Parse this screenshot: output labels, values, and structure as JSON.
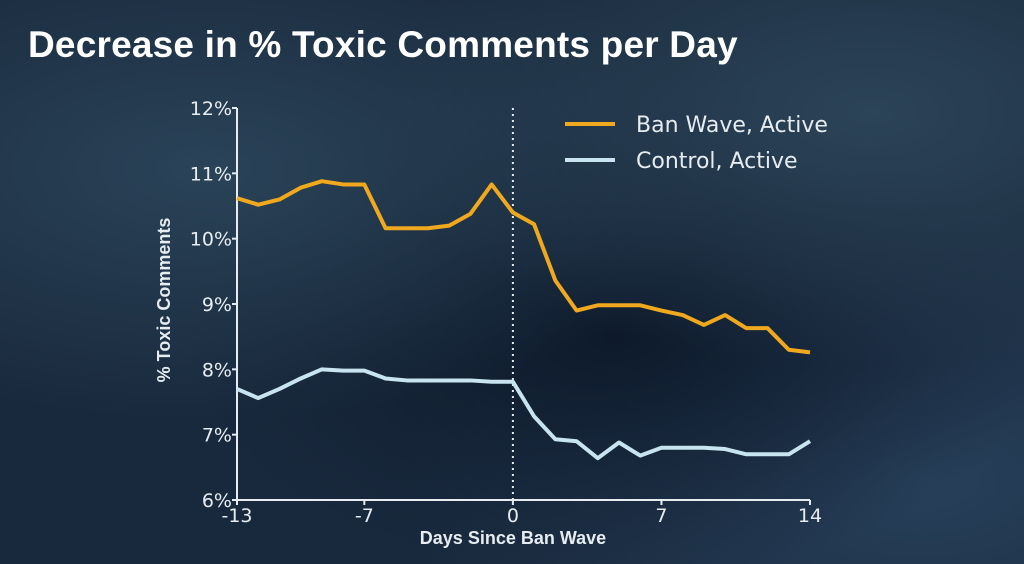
{
  "chart_data": {
    "type": "line",
    "title": "Decrease in % Toxic Comments per Day",
    "xlabel": "Days Since Ban Wave",
    "ylabel": "% Toxic Comments",
    "xlim": [
      -13,
      14
    ],
    "ylim": [
      6,
      12
    ],
    "x_ticks": [
      -13,
      -7,
      0,
      7,
      14
    ],
    "x_tick_labels": [
      "-13",
      "-7",
      "0",
      "7",
      "14"
    ],
    "y_ticks": [
      6,
      7,
      8,
      9,
      10,
      11,
      12
    ],
    "y_tick_labels": [
      "6%",
      "7%",
      "8%",
      "9%",
      "10%",
      "11%",
      "12%"
    ],
    "grid": false,
    "legend_position": "top-right",
    "reference_line": {
      "x": 0,
      "style": "dotted"
    },
    "x": [
      -13,
      -12,
      -11,
      -10,
      -9,
      -8,
      -7,
      -6,
      -5,
      -4,
      -3,
      -2,
      -1,
      0,
      1,
      2,
      3,
      4,
      5,
      6,
      7,
      8,
      9,
      10,
      11,
      12,
      13,
      14
    ],
    "series": [
      {
        "name": "Ban Wave, Active",
        "color": "#f0a81e",
        "values": [
          10.62,
          10.52,
          10.6,
          10.78,
          10.88,
          10.83,
          10.83,
          10.16,
          10.16,
          10.16,
          10.2,
          10.38,
          10.83,
          10.4,
          10.22,
          9.36,
          8.9,
          8.98,
          8.98,
          8.98,
          8.9,
          8.83,
          8.68,
          8.83,
          8.63,
          8.63,
          8.3,
          8.26
        ]
      },
      {
        "name": "Control, Active",
        "color": "#c8e4f0",
        "values": [
          7.7,
          7.56,
          7.7,
          7.86,
          8.0,
          7.98,
          7.98,
          7.86,
          7.83,
          7.83,
          7.83,
          7.83,
          7.81,
          7.81,
          7.28,
          6.93,
          6.9,
          6.64,
          6.88,
          6.68,
          6.8,
          6.8,
          6.8,
          6.78,
          6.7,
          6.7,
          6.7,
          6.9
        ]
      }
    ]
  }
}
